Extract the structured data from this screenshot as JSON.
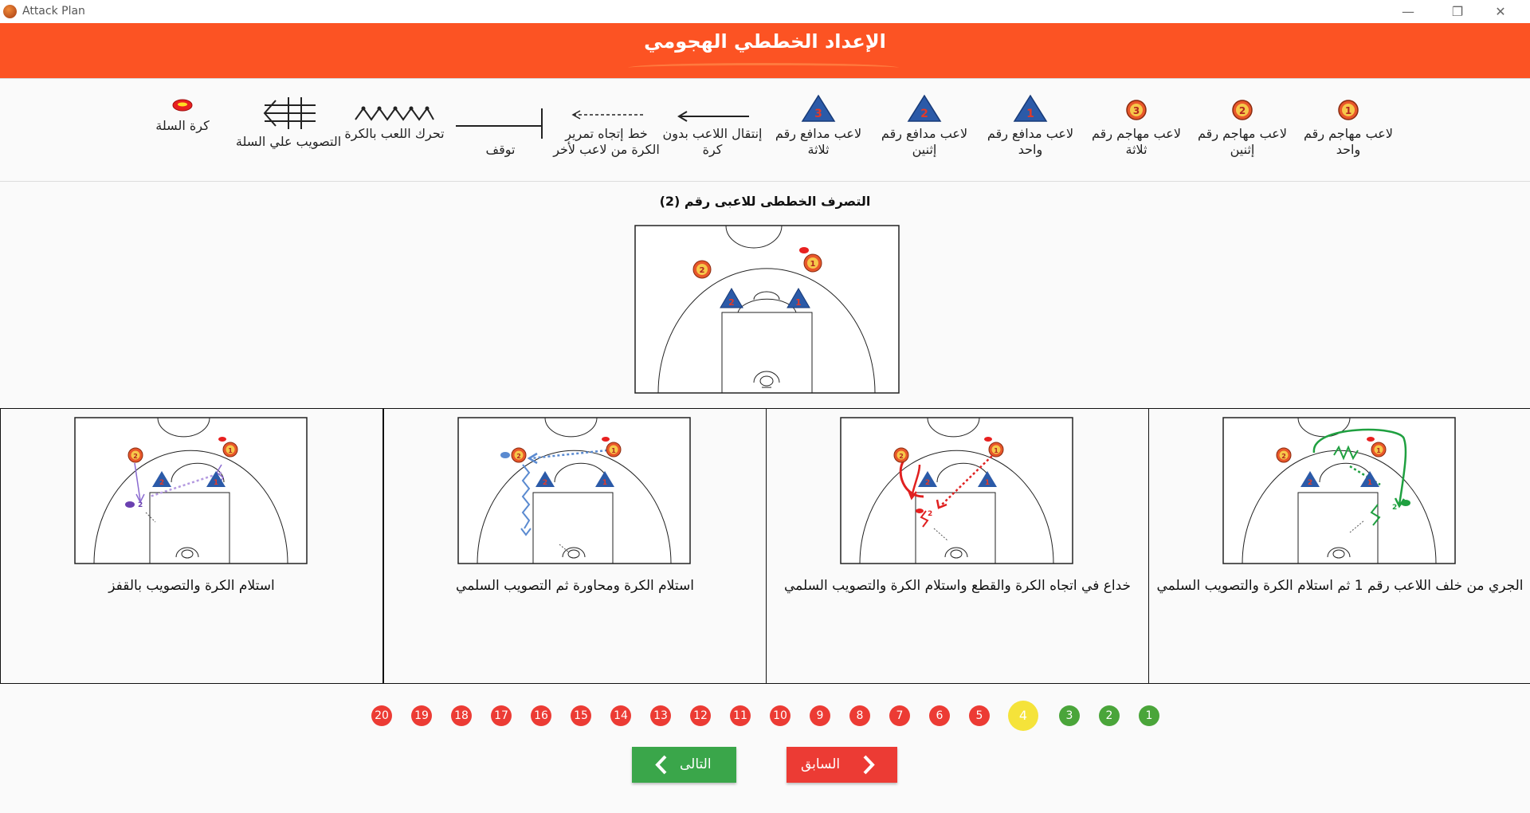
{
  "window": {
    "title": "Attack Plan",
    "minimize": "—",
    "restore": "❐",
    "close": "✕"
  },
  "header": {
    "title": "الإعداد الخططي الهجومي"
  },
  "legend": {
    "attacker_1": "لاعب مهاجم رقم واحد",
    "attacker_2": "لاعب مهاجم رقم إثنين",
    "attacker_3": "لاعب مهاجم رقم ثلاثة",
    "defender_1": "لاعب مدافع رقم واحد",
    "defender_2": "لاعب مدافع رقم إثنين",
    "defender_3": "لاعب مدافع رقم ثلاثة",
    "move_no_ball": "إنتقال اللاعب بدون كرة",
    "pass_line": "خط إتجاه تمرير الكرة من لاعب لأخر",
    "stop": "توقف",
    "dribble": "تحرك اللعب بالكرة",
    "shoot": "التصويب علي السلة",
    "basket_ball": "كرة السلة"
  },
  "section": {
    "title": "التصرف الخططى للاعبى رقم (2)"
  },
  "cards": [
    {
      "label": "الجري من خلف اللاعب رقم 1 ثم استلام الكرة والتصويب السلمي"
    },
    {
      "label": "خداع في اتجاه الكرة والقطع واستلام الكرة والتصويب السلمي"
    },
    {
      "label": "استلام الكرة ومحاورة ثم التصويب السلمي"
    },
    {
      "label": "استلام الكرة والتصويب بالقفز"
    }
  ],
  "pager": {
    "pages": [
      "1",
      "2",
      "3",
      "4",
      "5",
      "6",
      "7",
      "8",
      "9",
      "10",
      "11",
      "12",
      "13",
      "14",
      "15",
      "16",
      "17",
      "18",
      "19",
      "20"
    ],
    "current": "4"
  },
  "nav": {
    "next_label": "التالى",
    "prev_label": "السابق"
  },
  "colors": {
    "header": "#fc5323",
    "attacker": "#e8572a",
    "defender": "#2b5aa8",
    "red": "#ec3b34",
    "green": "#4aa53a",
    "yellow": "#f5e33a"
  },
  "icons": {
    "app": "basketball-icon",
    "next": "chevron-left-icon",
    "prev": "chevron-right-icon"
  }
}
